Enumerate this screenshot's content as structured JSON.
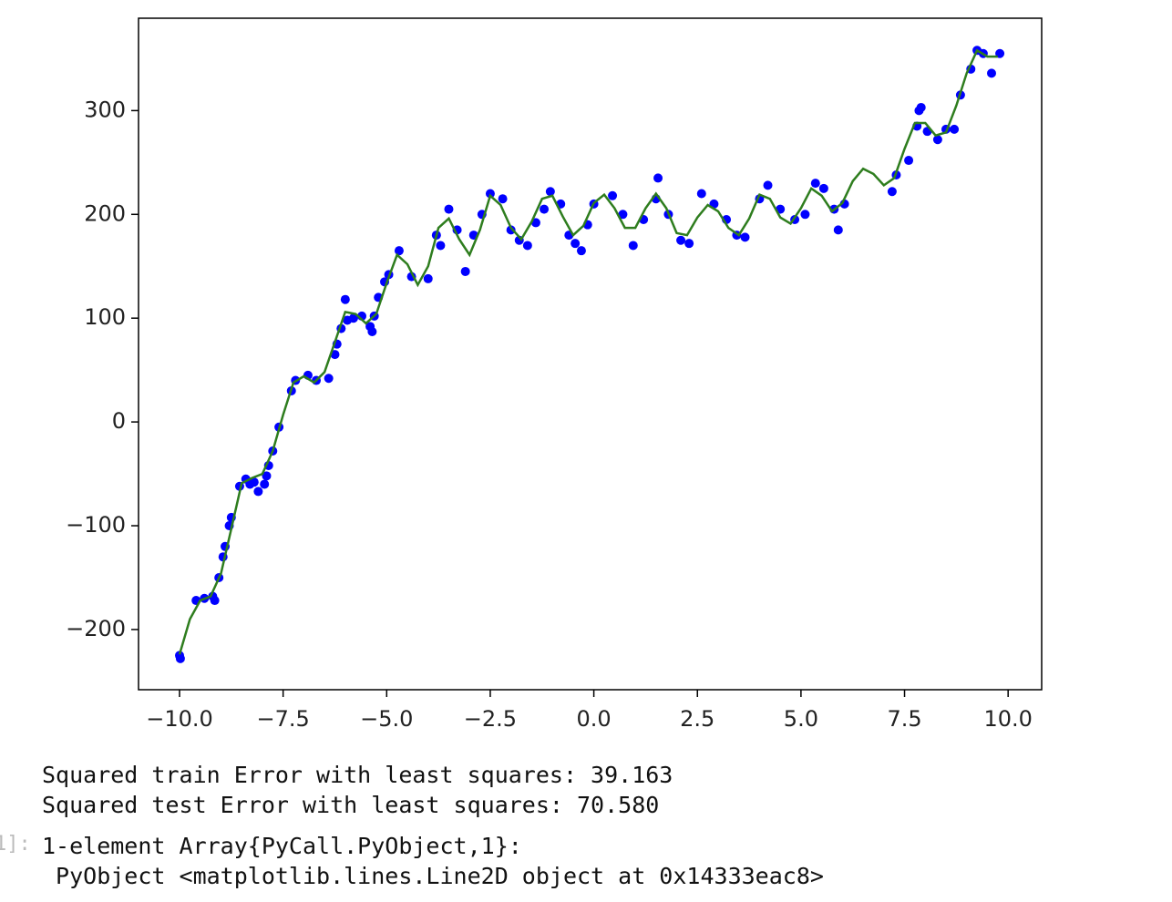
{
  "chart_data": {
    "type": "scatter",
    "xlim": [
      -10.99,
      10.81
    ],
    "ylim": [
      -258,
      389
    ],
    "xticks": [
      {
        "value": -10,
        "label": "−10.0"
      },
      {
        "value": -7.5,
        "label": "−7.5"
      },
      {
        "value": -5,
        "label": "−5.0"
      },
      {
        "value": -2.5,
        "label": "−2.5"
      },
      {
        "value": 0,
        "label": "0.0"
      },
      {
        "value": 2.5,
        "label": "2.5"
      },
      {
        "value": 5,
        "label": "5.0"
      },
      {
        "value": 7.5,
        "label": "7.5"
      },
      {
        "value": 10,
        "label": "10.0"
      }
    ],
    "yticks": [
      {
        "value": -200,
        "label": "−200"
      },
      {
        "value": -100,
        "label": "−100"
      },
      0,
      100,
      200,
      300
    ],
    "series": [
      {
        "type": "scatter",
        "color": "#0000ff",
        "x": [
          -10,
          -9.98,
          -9.6,
          -9.4,
          -9.2,
          -9.15,
          -9.05,
          -8.95,
          -8.9,
          -8.8,
          -8.75,
          -8.55,
          -8.4,
          -8.3,
          -8.2,
          -8.1,
          -7.95,
          -7.9,
          -7.85,
          -7.75,
          -7.6,
          -7.3,
          -7.2,
          -6.9,
          -6.7,
          -6.4,
          -6.25,
          -6.2,
          -6.1,
          -6.0,
          -5.95,
          -5.8,
          -5.6,
          -5.4,
          -5.35,
          -5.3,
          -5.2,
          -5.05,
          -4.95,
          -4.7,
          -4.4,
          -4.0,
          -3.8,
          -3.7,
          -3.5,
          -3.3,
          -3.1,
          -2.9,
          -2.7,
          -2.5,
          -2.2,
          -2.0,
          -1.8,
          -1.6,
          -1.4,
          -1.2,
          -1.05,
          -0.8,
          -0.6,
          -0.45,
          -0.3,
          -0.15,
          0.0,
          0.45,
          0.7,
          0.95,
          1.2,
          1.5,
          1.55,
          1.8,
          2.1,
          2.3,
          2.6,
          2.9,
          3.2,
          3.45,
          3.65,
          4.0,
          4.2,
          4.5,
          4.85,
          5.1,
          5.35,
          5.55,
          5.8,
          5.9,
          6.05,
          7.2,
          7.3,
          7.6,
          7.8,
          7.85,
          7.9,
          8.05,
          8.3,
          8.5,
          8.7,
          8.85,
          9.1,
          9.25,
          9.4,
          9.6,
          9.8
        ],
        "values": [
          -225,
          -228,
          -172,
          -170,
          -168,
          -172,
          -150,
          -130,
          -120,
          -100,
          -92,
          -62,
          -55,
          -60,
          -58,
          -67,
          -60,
          -52,
          -42,
          -28,
          -5,
          30,
          40,
          45,
          40,
          42,
          65,
          75,
          90,
          118,
          98,
          100,
          102,
          92,
          87,
          102,
          120,
          135,
          142,
          165,
          140,
          138,
          180,
          170,
          205,
          185,
          145,
          180,
          200,
          220,
          215,
          185,
          175,
          170,
          192,
          205,
          222,
          210,
          180,
          172,
          165,
          190,
          210,
          218,
          200,
          170,
          195,
          215,
          235,
          200,
          175,
          172,
          220,
          210,
          195,
          180,
          178,
          215,
          228,
          205,
          195,
          200,
          230,
          225,
          205,
          185,
          210,
          222,
          238,
          252,
          285,
          300,
          303,
          280,
          272,
          282,
          282,
          315,
          340,
          358,
          355,
          336,
          355
        ]
      },
      {
        "type": "line",
        "color": "#2e7d1e",
        "x": [
          -10,
          -9.75,
          -9.5,
          -9.25,
          -9,
          -8.75,
          -8.5,
          -8.25,
          -8,
          -7.75,
          -7.5,
          -7.25,
          -7,
          -6.75,
          -6.5,
          -6.25,
          -6,
          -5.75,
          -5.5,
          -5.25,
          -5,
          -4.75,
          -4.5,
          -4.25,
          -4,
          -3.75,
          -3.5,
          -3.25,
          -3,
          -2.75,
          -2.5,
          -2.25,
          -2,
          -1.75,
          -1.5,
          -1.25,
          -1,
          -0.75,
          -0.5,
          -0.25,
          0,
          0.25,
          0.5,
          0.75,
          1,
          1.25,
          1.5,
          1.75,
          2,
          2.25,
          2.5,
          2.75,
          3,
          3.25,
          3.5,
          3.75,
          4,
          4.25,
          4.5,
          4.75,
          5,
          5.25,
          5.5,
          5.75,
          6,
          6.25,
          6.5,
          6.75,
          7,
          7.25,
          7.5,
          7.75,
          8,
          8.25,
          8.5,
          8.75,
          9,
          9.25,
          9.5,
          9.75
        ],
        "values": [
          -224,
          -190,
          -172,
          -168,
          -146,
          -103,
          -59,
          -54,
          -50,
          -28,
          7,
          38,
          44,
          38,
          48,
          77,
          106,
          104,
          95,
          104,
          134,
          161,
          152,
          132,
          150,
          187,
          196,
          176,
          161,
          185,
          218,
          209,
          187,
          176,
          193,
          215,
          218,
          198,
          180,
          189,
          211,
          219,
          206,
          187,
          187,
          206,
          220,
          206,
          182,
          180,
          197,
          209,
          203,
          187,
          180,
          196,
          219,
          215,
          197,
          191,
          206,
          225,
          218,
          203,
          211,
          232,
          244,
          239,
          228,
          235,
          263,
          288,
          288,
          276,
          279,
          305,
          336,
          358,
          352,
          352
        ]
      }
    ]
  },
  "output": {
    "train": "Squared train Error with least squares: 39.163",
    "test": "Squared test Error with least squares: 70.580",
    "prompt": "1]:",
    "result_1": "1-element Array{PyCall.PyObject,1}:",
    "result_2": " PyObject <matplotlib.lines.Line2D object at 0x14333eac8>"
  }
}
